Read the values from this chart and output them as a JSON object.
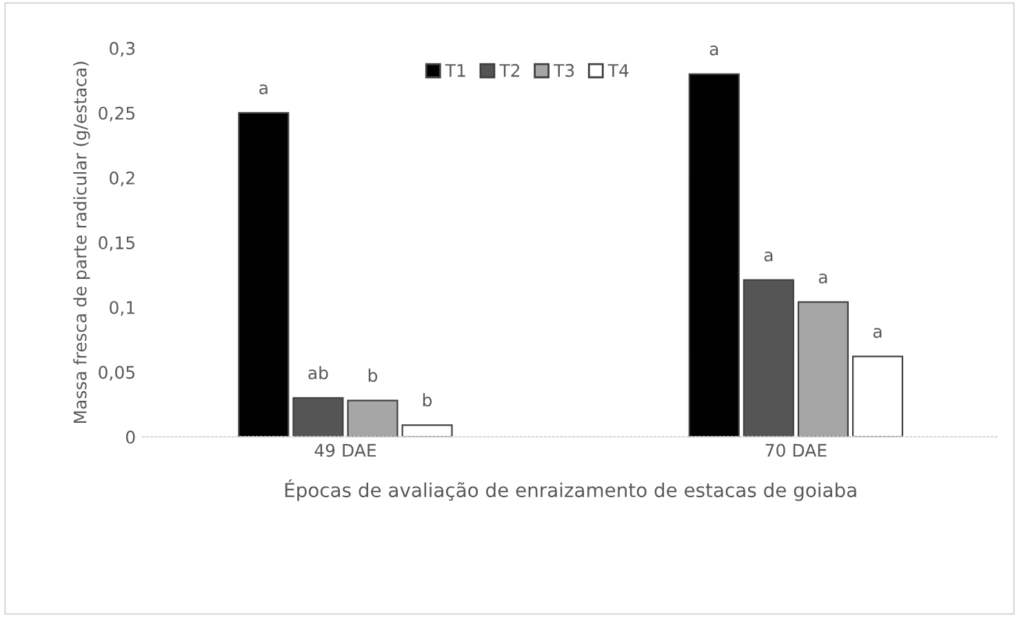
{
  "chart_data": {
    "type": "bar",
    "ylabel": "Massa fresca de parte radicular (g/estaca)",
    "xlabel": "Épocas de avaliação de enraizamento de estacas de goiaba",
    "categories": [
      "49 DAE",
      "70 DAE"
    ],
    "series": [
      {
        "name": "T1",
        "color": "#000000",
        "values": [
          0.25,
          0.28
        ],
        "value_labels": [
          "a",
          "a"
        ]
      },
      {
        "name": "T2",
        "color": "#555555",
        "values": [
          0.03,
          0.121
        ],
        "value_labels": [
          "ab",
          "a"
        ]
      },
      {
        "name": "T3",
        "color": "#a6a6a6",
        "values": [
          0.028,
          0.104
        ],
        "value_labels": [
          "b",
          "a"
        ]
      },
      {
        "name": "T4",
        "color": "#ffffff",
        "values": [
          0.009,
          0.062
        ],
        "value_labels": [
          "b",
          "a"
        ]
      }
    ],
    "ylim": [
      0,
      0.3
    ],
    "yticks": [
      {
        "value": 0,
        "label": "0"
      },
      {
        "value": 0.05,
        "label": "0,05"
      },
      {
        "value": 0.1,
        "label": "0,1"
      },
      {
        "value": 0.15,
        "label": "0,15"
      },
      {
        "value": 0.2,
        "label": "0,2"
      },
      {
        "value": 0.25,
        "label": "0,25"
      },
      {
        "value": 0.3,
        "label": "0,3"
      }
    ],
    "legend": "top",
    "grid": false
  }
}
